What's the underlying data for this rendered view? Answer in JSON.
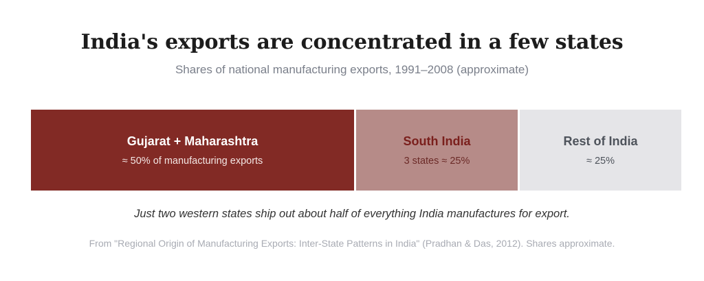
{
  "header": {
    "title": "India's exports are concentrated in a few states",
    "subtitle": "Shares of national manufacturing exports, 1991–2008 (approximate)"
  },
  "chart_data": {
    "type": "bar",
    "subtype": "stacked-100-horizontal",
    "categories": [
      "Gujarat + Maharashtra",
      "South India",
      "Rest of India"
    ],
    "values": [
      50,
      25,
      25
    ],
    "unit": "%",
    "segments": [
      {
        "label": "Gujarat + Maharashtra",
        "sublabel": "≈ 50% of manufacturing exports",
        "value": 50,
        "fill": "#822a25",
        "text_color": "#ffffff",
        "sub_color": "#f3e6e4"
      },
      {
        "label": "South India",
        "sublabel": "3 states ≈ 25%",
        "value": 25,
        "fill": "#b68b88",
        "text_color": "#7a1f1c",
        "sub_color": "#6b2a27"
      },
      {
        "label": "Rest of India",
        "sublabel": "≈ 25%",
        "value": 25,
        "fill": "#e5e5e8",
        "text_color": "#4e535b",
        "sub_color": "#4e535b"
      }
    ]
  },
  "caption": "Just two western states ship out about half of everything India manufactures for export.",
  "source": "From \"Regional Origin of Manufacturing Exports: Inter-State Patterns in India\" (Pradhan & Das, 2012). Shares approximate."
}
